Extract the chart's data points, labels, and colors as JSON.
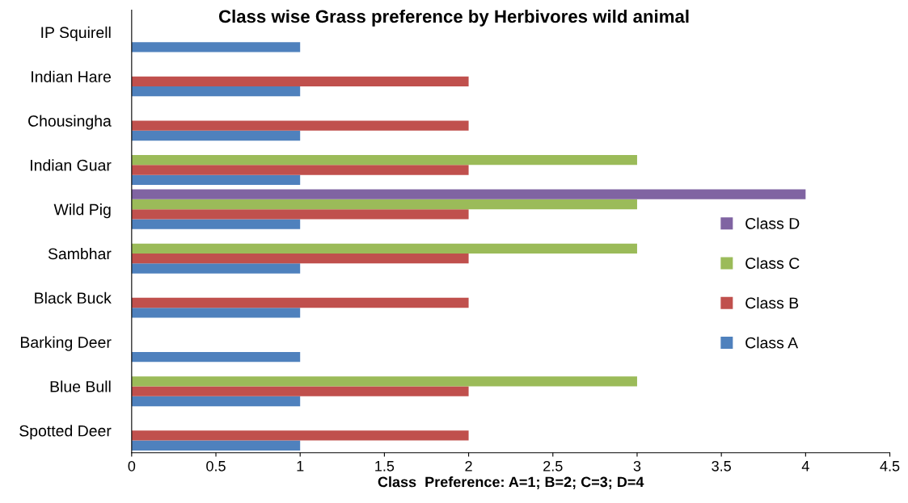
{
  "chart_data": {
    "type": "bar",
    "orientation": "horizontal",
    "title": "Class wise Grass preference by Herbivores wild animal",
    "xlabel": "Class  Preference: A=1; B=2; C=3; D=4",
    "categories": [
      "IP Squirell",
      "Indian Hare",
      "Chousingha",
      "Indian Guar",
      "Wild Pig",
      "Sambhar",
      "Black Buck",
      "Barking Deer",
      "Blue Bull",
      "Spotted Deer"
    ],
    "series": [
      {
        "name": "Class A",
        "color": "#4f81bd",
        "values": [
          1,
          1,
          1,
          1,
          1,
          1,
          1,
          1,
          1,
          1
        ]
      },
      {
        "name": "Class B",
        "color": "#c0504d",
        "values": [
          null,
          2,
          2,
          2,
          2,
          2,
          2,
          null,
          2,
          2
        ]
      },
      {
        "name": "Class C",
        "color": "#9bbb59",
        "values": [
          null,
          null,
          null,
          3,
          3,
          3,
          null,
          null,
          3,
          null
        ]
      },
      {
        "name": "Class D",
        "color": "#8064a2",
        "values": [
          null,
          null,
          null,
          null,
          4,
          null,
          null,
          null,
          null,
          null
        ]
      }
    ],
    "xlim": [
      0,
      4.5
    ],
    "xticks": [
      0,
      0.5,
      1,
      1.5,
      2,
      2.5,
      3,
      3.5,
      4,
      4.5
    ],
    "grid": false,
    "legend": "right"
  }
}
